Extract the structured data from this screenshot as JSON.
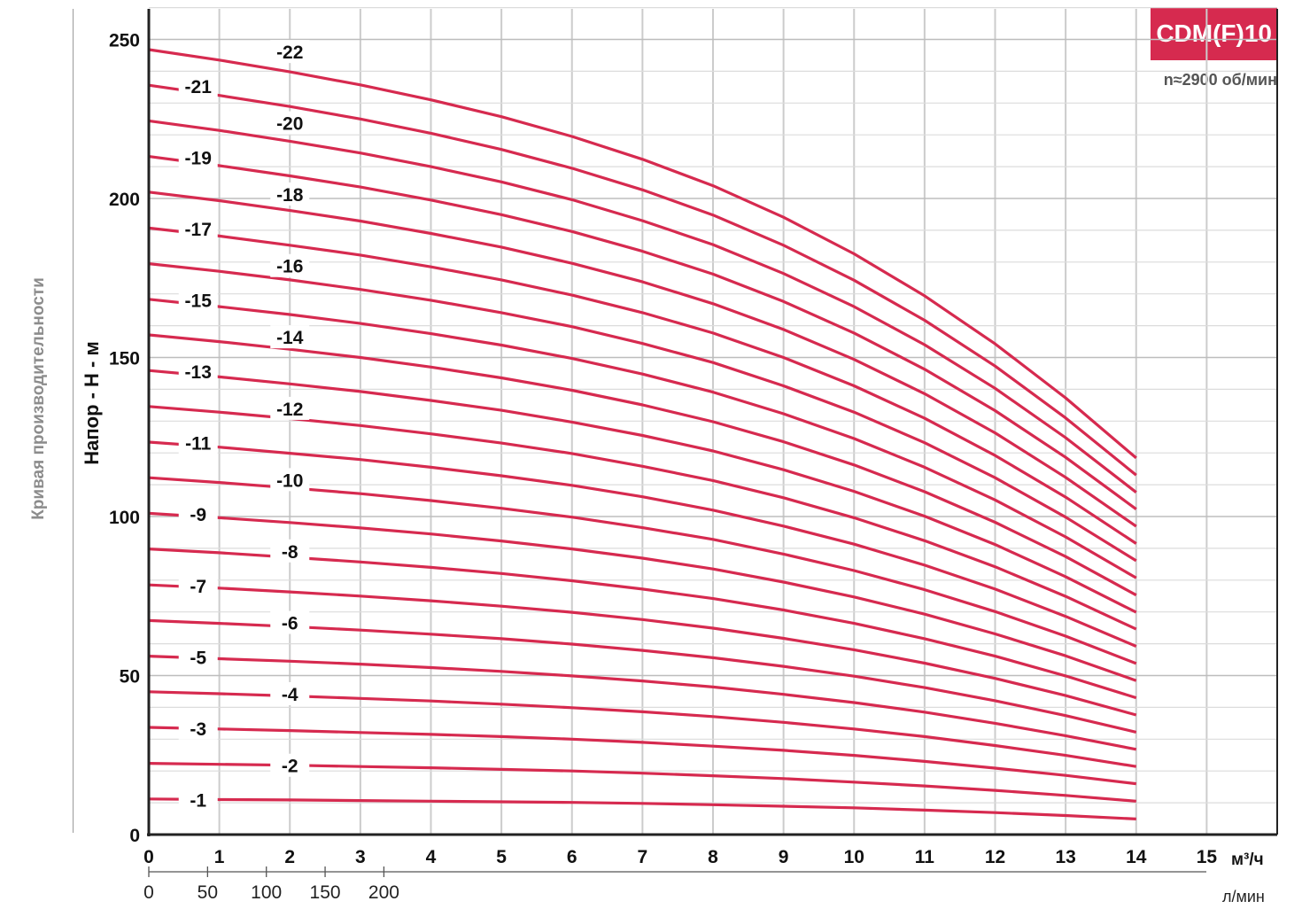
{
  "header": {
    "model_badge": "CDM(F)10",
    "speed": "n≈2900 об/мин"
  },
  "side_title": "Кривая производительности",
  "colors": {
    "curve": "#d62a4f",
    "grid": "#cccccc",
    "axis": "#222222"
  },
  "chart_data": {
    "type": "line",
    "ylabel": "Напор - Н - м",
    "xlabel_primary_unit": "м³/ч",
    "xlabel_secondary_unit": "л/мин",
    "x_ticks": [
      0,
      1,
      2,
      3,
      4,
      5,
      6,
      7,
      8,
      9,
      10,
      11,
      12,
      13,
      14,
      15
    ],
    "x_ticks_secondary": [
      0,
      50,
      100,
      150,
      200
    ],
    "y_ticks": [
      0,
      50,
      100,
      150,
      200,
      250
    ],
    "xlim": [
      0,
      16
    ],
    "ylim": [
      0,
      260
    ],
    "grid": true,
    "x": [
      0,
      1,
      2,
      3,
      4,
      5,
      6,
      7,
      8,
      9,
      10,
      11,
      12,
      13,
      14
    ],
    "series": [
      {
        "name": "-1",
        "values": [
          11.2,
          11.0,
          10.9,
          10.7,
          10.5,
          10.3,
          10.1,
          9.8,
          9.4,
          8.9,
          8.4,
          7.7,
          6.9,
          6.0,
          4.9
        ]
      },
      {
        "name": "-2",
        "values": [
          22.4,
          22.1,
          21.8,
          21.4,
          21.0,
          20.5,
          20.0,
          19.3,
          18.5,
          17.6,
          16.5,
          15.3,
          13.9,
          12.3,
          10.5
        ]
      },
      {
        "name": "-3",
        "values": [
          33.7,
          33.2,
          32.7,
          32.1,
          31.5,
          30.8,
          30.0,
          29.0,
          27.8,
          26.5,
          24.9,
          23.0,
          20.9,
          18.6,
          16.0
        ]
      },
      {
        "name": "-4",
        "values": [
          44.9,
          44.3,
          43.6,
          42.8,
          42.0,
          41.0,
          39.9,
          38.6,
          37.1,
          35.3,
          33.2,
          30.8,
          28.0,
          24.9,
          21.4
        ]
      },
      {
        "name": "-5",
        "values": [
          56.1,
          55.3,
          54.5,
          53.6,
          52.5,
          51.3,
          49.9,
          48.3,
          46.4,
          44.1,
          41.5,
          38.5,
          35.0,
          31.1,
          26.8
        ]
      },
      {
        "name": "-6",
        "values": [
          67.3,
          66.4,
          65.4,
          64.3,
          63.0,
          61.6,
          59.9,
          57.9,
          55.6,
          52.9,
          49.8,
          46.2,
          42.1,
          37.4,
          32.2
        ]
      },
      {
        "name": "-7",
        "values": [
          78.5,
          77.5,
          76.3,
          75.0,
          73.5,
          71.8,
          69.9,
          67.6,
          64.9,
          61.7,
          58.1,
          53.9,
          49.1,
          43.7,
          37.6
        ]
      },
      {
        "name": "-8",
        "values": [
          89.8,
          88.6,
          87.2,
          85.7,
          84.0,
          82.1,
          79.8,
          77.2,
          74.2,
          70.6,
          66.4,
          61.6,
          56.1,
          49.9,
          43.0
        ]
      },
      {
        "name": "-9",
        "values": [
          101.0,
          99.6,
          98.1,
          96.4,
          94.5,
          92.3,
          89.8,
          86.9,
          83.5,
          79.4,
          74.7,
          69.3,
          63.1,
          56.2,
          48.4
        ]
      },
      {
        "name": "-10",
        "values": [
          112.2,
          110.7,
          109.0,
          107.2,
          105.0,
          102.6,
          99.8,
          96.5,
          92.8,
          88.2,
          83.0,
          77.0,
          70.1,
          62.4,
          53.8
        ]
      },
      {
        "name": "-11",
        "values": [
          123.4,
          121.8,
          119.9,
          117.9,
          115.5,
          112.8,
          109.8,
          106.2,
          102.0,
          97.0,
          91.3,
          84.7,
          77.2,
          68.6,
          59.2
        ]
      },
      {
        "name": "-12",
        "values": [
          134.6,
          132.8,
          130.8,
          128.6,
          126.0,
          123.1,
          119.8,
          115.8,
          111.3,
          105.9,
          99.6,
          92.4,
          84.2,
          74.9,
          64.6
        ]
      },
      {
        "name": "-13",
        "values": [
          145.9,
          143.9,
          141.7,
          139.3,
          136.5,
          133.4,
          129.7,
          125.5,
          120.6,
          114.7,
          107.9,
          100.1,
          91.2,
          81.1,
          69.9
        ]
      },
      {
        "name": "-14",
        "values": [
          157.1,
          155.0,
          152.6,
          150.0,
          147.0,
          143.6,
          139.7,
          135.1,
          129.8,
          123.5,
          116.2,
          107.8,
          98.2,
          87.4,
          75.3
        ]
      },
      {
        "name": "-15",
        "values": [
          168.3,
          166.0,
          163.5,
          160.7,
          157.5,
          153.9,
          149.7,
          144.8,
          139.1,
          132.3,
          124.5,
          115.5,
          105.2,
          93.6,
          80.7
        ]
      },
      {
        "name": "-16",
        "values": [
          179.5,
          177.1,
          174.4,
          171.4,
          168.0,
          164.1,
          159.7,
          154.4,
          148.4,
          141.1,
          132.8,
          123.2,
          112.2,
          99.8,
          86.1
        ]
      },
      {
        "name": "-17",
        "values": [
          190.7,
          188.2,
          185.3,
          182.2,
          178.5,
          174.4,
          169.6,
          164.1,
          157.7,
          150.0,
          141.1,
          130.9,
          119.2,
          106.1,
          91.5
        ]
      },
      {
        "name": "-18",
        "values": [
          202.0,
          199.3,
          196.2,
          192.9,
          189.0,
          184.7,
          179.6,
          173.8,
          166.9,
          158.8,
          149.4,
          138.6,
          126.3,
          112.3,
          96.9
        ]
      },
      {
        "name": "-19",
        "values": [
          213.2,
          210.3,
          207.1,
          203.6,
          199.5,
          194.9,
          189.6,
          183.4,
          176.2,
          167.6,
          157.7,
          146.3,
          133.3,
          118.6,
          102.3
        ]
      },
      {
        "name": "-20",
        "values": [
          224.4,
          221.4,
          218.0,
          214.3,
          210.0,
          205.2,
          199.6,
          193.0,
          185.5,
          176.4,
          166.0,
          154.0,
          140.3,
          124.8,
          107.6
        ]
      },
      {
        "name": "-21",
        "values": [
          235.6,
          232.4,
          228.9,
          225.0,
          220.5,
          215.4,
          209.5,
          202.7,
          194.8,
          185.3,
          174.3,
          161.7,
          147.3,
          131.0,
          113.0
        ]
      },
      {
        "name": "-22",
        "values": [
          246.8,
          243.5,
          239.8,
          235.7,
          231.0,
          225.7,
          219.5,
          212.3,
          204.0,
          194.1,
          182.6,
          169.4,
          154.3,
          137.3,
          118.4
        ]
      }
    ]
  }
}
